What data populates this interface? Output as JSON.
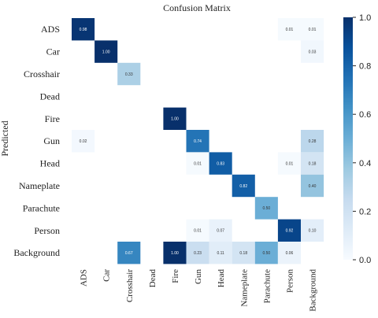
{
  "chart_data": {
    "type": "heatmap",
    "title": "Confusion Matrix",
    "ylabel": "Predicted",
    "xlabel": "",
    "x_categories": [
      "ADS",
      "Car",
      "Crosshair",
      "Dead",
      "Fire",
      "Gun",
      "Head",
      "Nameplate",
      "Parachute",
      "Person",
      "Background"
    ],
    "y_categories": [
      "ADS",
      "Car",
      "Crosshair",
      "Dead",
      "Fire",
      "Gun",
      "Head",
      "Nameplate",
      "Parachute",
      "Person",
      "Background"
    ],
    "cells": [
      {
        "row": 0,
        "col": 0,
        "value": 0.98,
        "label": "0.98"
      },
      {
        "row": 0,
        "col": 9,
        "value": 0.01,
        "label": "0.01"
      },
      {
        "row": 0,
        "col": 10,
        "value": 0.01,
        "label": "0.01"
      },
      {
        "row": 1,
        "col": 1,
        "value": 1.0,
        "label": "1.00"
      },
      {
        "row": 1,
        "col": 10,
        "value": 0.03,
        "label": "0.03"
      },
      {
        "row": 2,
        "col": 2,
        "value": 0.33,
        "label": "0.33"
      },
      {
        "row": 4,
        "col": 4,
        "value": 1.0,
        "label": "1.00"
      },
      {
        "row": 5,
        "col": 0,
        "value": 0.02,
        "label": "0.02"
      },
      {
        "row": 5,
        "col": 5,
        "value": 0.74,
        "label": "0.74"
      },
      {
        "row": 5,
        "col": 10,
        "value": 0.28,
        "label": "0.28"
      },
      {
        "row": 6,
        "col": 5,
        "value": 0.01,
        "label": "0.01"
      },
      {
        "row": 6,
        "col": 6,
        "value": 0.83,
        "label": "0.83"
      },
      {
        "row": 6,
        "col": 9,
        "value": 0.01,
        "label": "0.01"
      },
      {
        "row": 6,
        "col": 10,
        "value": 0.18,
        "label": "0.18"
      },
      {
        "row": 7,
        "col": 7,
        "value": 0.82,
        "label": "0.82"
      },
      {
        "row": 7,
        "col": 10,
        "value": 0.4,
        "label": "0.40"
      },
      {
        "row": 8,
        "col": 8,
        "value": 0.5,
        "label": "0.50"
      },
      {
        "row": 9,
        "col": 5,
        "value": 0.01,
        "label": "0.01"
      },
      {
        "row": 9,
        "col": 6,
        "value": 0.07,
        "label": "0.07"
      },
      {
        "row": 9,
        "col": 9,
        "value": 0.92,
        "label": "0.92"
      },
      {
        "row": 9,
        "col": 10,
        "value": 0.1,
        "label": "0.10"
      },
      {
        "row": 10,
        "col": 2,
        "value": 0.67,
        "label": "0.67"
      },
      {
        "row": 10,
        "col": 4,
        "value": 1.0,
        "label": "1.00"
      },
      {
        "row": 10,
        "col": 5,
        "value": 0.23,
        "label": "0.23"
      },
      {
        "row": 10,
        "col": 6,
        "value": 0.11,
        "label": "0.11"
      },
      {
        "row": 10,
        "col": 7,
        "value": 0.18,
        "label": "0.18"
      },
      {
        "row": 10,
        "col": 8,
        "value": 0.5,
        "label": "0.50"
      },
      {
        "row": 10,
        "col": 9,
        "value": 0.06,
        "label": "0.06"
      }
    ],
    "value_range": [
      0,
      1
    ],
    "colorbar": {
      "ticks": [
        0.0,
        0.2,
        0.4,
        0.6,
        0.8,
        1.0
      ],
      "tick_labels": [
        "0.0",
        "0.2",
        "0.4",
        "0.6",
        "0.8",
        "1.0"
      ],
      "placement": "right",
      "colormap": "Blues",
      "low_color": "#f7fbff",
      "high_color": "#08306b"
    },
    "grid": false
  }
}
